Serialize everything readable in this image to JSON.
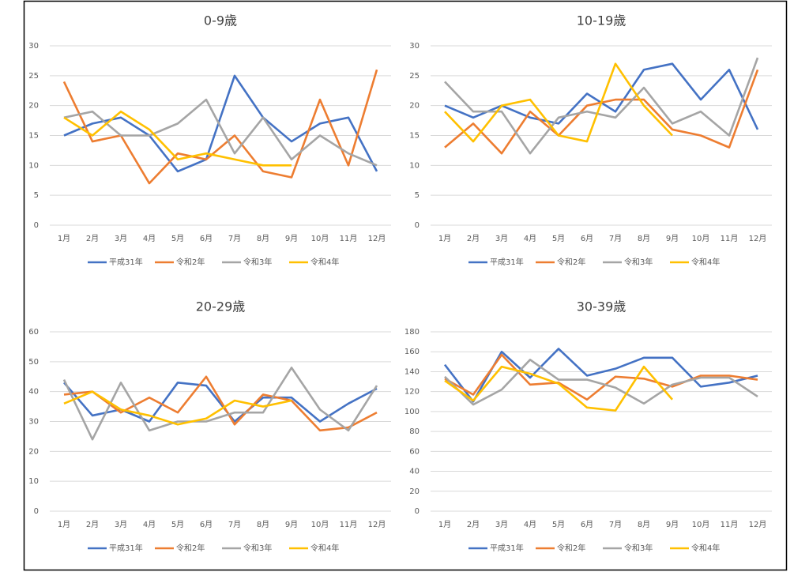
{
  "chart_data": [
    {
      "type": "line",
      "title": "0-9歳",
      "categories": [
        "1月",
        "2月",
        "3月",
        "4月",
        "5月",
        "6月",
        "7月",
        "8月",
        "9月",
        "10月",
        "11月",
        "12月"
      ],
      "ylim": [
        0,
        30
      ],
      "yticks": [
        0,
        5,
        10,
        15,
        20,
        25,
        30
      ],
      "grid": true,
      "legend": "bottom",
      "series": [
        {
          "name": "平成31年",
          "color": "#4472c4",
          "values": [
            15,
            17,
            18,
            15,
            9,
            11,
            25,
            18,
            14,
            17,
            18,
            9
          ]
        },
        {
          "name": "令和2年",
          "color": "#ed7d31",
          "values": [
            24,
            14,
            15,
            7,
            12,
            11,
            15,
            9,
            8,
            21,
            10,
            26
          ]
        },
        {
          "name": "令和3年",
          "color": "#a5a5a5",
          "values": [
            18,
            19,
            15,
            15,
            17,
            21,
            12,
            18,
            11,
            15,
            12,
            10
          ]
        },
        {
          "name": "令和4年",
          "color": "#ffc000",
          "values": [
            18,
            15,
            19,
            16,
            11,
            12,
            11,
            10,
            10,
            null,
            null,
            null
          ]
        }
      ]
    },
    {
      "type": "line",
      "title": "10-19歳",
      "categories": [
        "1月",
        "2月",
        "3月",
        "4月",
        "5月",
        "6月",
        "7月",
        "8月",
        "9月",
        "10月",
        "11月",
        "12月"
      ],
      "ylim": [
        0,
        30
      ],
      "yticks": [
        0,
        5,
        10,
        15,
        20,
        25,
        30
      ],
      "grid": true,
      "legend": "bottom",
      "series": [
        {
          "name": "平成31年",
          "color": "#4472c4",
          "values": [
            20,
            18,
            20,
            18,
            17,
            22,
            19,
            26,
            27,
            21,
            26,
            16
          ]
        },
        {
          "name": "令和2年",
          "color": "#ed7d31",
          "values": [
            13,
            17,
            12,
            19,
            15,
            20,
            21,
            21,
            16,
            15,
            13,
            26
          ]
        },
        {
          "name": "令和3年",
          "color": "#a5a5a5",
          "values": [
            24,
            19,
            19,
            12,
            18,
            19,
            18,
            23,
            17,
            19,
            15,
            28
          ]
        },
        {
          "name": "令和4年",
          "color": "#ffc000",
          "values": [
            19,
            14,
            20,
            21,
            15,
            14,
            27,
            20,
            15,
            null,
            null,
            null
          ]
        }
      ]
    },
    {
      "type": "line",
      "title": "20-29歳",
      "categories": [
        "1月",
        "2月",
        "3月",
        "4月",
        "5月",
        "6月",
        "7月",
        "8月",
        "9月",
        "10月",
        "11月",
        "12月"
      ],
      "ylim": [
        0,
        60
      ],
      "yticks": [
        0,
        10,
        20,
        30,
        40,
        50,
        60
      ],
      "grid": true,
      "legend": "bottom",
      "series": [
        {
          "name": "平成31年",
          "color": "#4472c4",
          "values": [
            43,
            32,
            34,
            30,
            43,
            42,
            30,
            38,
            38,
            30,
            36,
            41
          ]
        },
        {
          "name": "令和2年",
          "color": "#ed7d31",
          "values": [
            39,
            40,
            33,
            38,
            33,
            45,
            29,
            39,
            37,
            27,
            28,
            33
          ]
        },
        {
          "name": "令和3年",
          "color": "#a5a5a5",
          "values": [
            44,
            24,
            43,
            27,
            30,
            30,
            33,
            33,
            48,
            34,
            27,
            42
          ]
        },
        {
          "name": "令和4年",
          "color": "#ffc000",
          "values": [
            36,
            40,
            34,
            32,
            29,
            31,
            37,
            35,
            37,
            null,
            null,
            null
          ]
        }
      ]
    },
    {
      "type": "line",
      "title": "30-39歳",
      "categories": [
        "1月",
        "2月",
        "3月",
        "4月",
        "5月",
        "6月",
        "7月",
        "8月",
        "9月",
        "10月",
        "11月",
        "12月"
      ],
      "ylim": [
        0,
        180
      ],
      "yticks": [
        0,
        20,
        40,
        60,
        80,
        100,
        120,
        140,
        160,
        180
      ],
      "grid": true,
      "legend": "bottom",
      "series": [
        {
          "name": "平成31年",
          "color": "#4472c4",
          "values": [
            147,
            110,
            160,
            134,
            163,
            136,
            143,
            154,
            154,
            125,
            129,
            136
          ]
        },
        {
          "name": "令和2年",
          "color": "#ed7d31",
          "values": [
            133,
            117,
            157,
            127,
            129,
            112,
            135,
            133,
            125,
            136,
            136,
            132
          ]
        },
        {
          "name": "令和3年",
          "color": "#a5a5a5",
          "values": [
            135,
            107,
            122,
            152,
            132,
            132,
            124,
            108,
            127,
            134,
            134,
            115
          ]
        },
        {
          "name": "令和4年",
          "color": "#ffc000",
          "values": [
            131,
            111,
            145,
            138,
            128,
            104,
            101,
            145,
            112,
            null,
            null,
            null
          ]
        }
      ]
    }
  ]
}
